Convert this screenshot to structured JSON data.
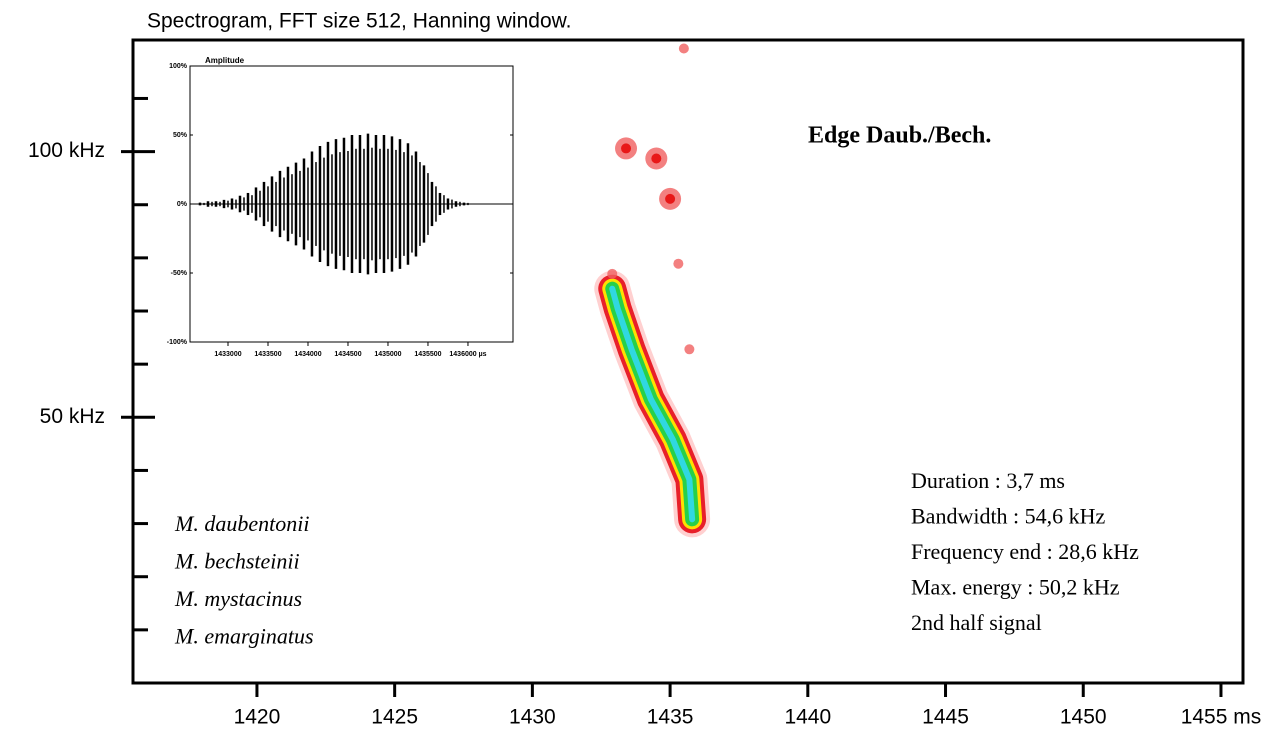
{
  "chart_data": {
    "type": "spectrogram",
    "title": "Spectrogram, FFT size 512, Hanning window.",
    "xlim": [
      1415.5,
      1455.8
    ],
    "xticks": [
      1420,
      1425,
      1430,
      1435,
      1440,
      1445,
      1450,
      {
        "value": 1455,
        "label": "1455 ms"
      }
    ],
    "ylim": [
      0,
      121
    ],
    "yticks": [
      {
        "value": 50,
        "label": "50 kHz"
      },
      {
        "value": 100,
        "label": "100 kHz"
      }
    ],
    "minor_yticks": [
      10,
      20,
      30,
      40,
      60,
      70,
      80,
      90,
      110
    ],
    "call": {
      "x": [
        1432.9,
        1433.1,
        1433.6,
        1434.3,
        1435.1,
        1435.7,
        1435.8
      ],
      "y": [
        74.2,
        70.4,
        62.8,
        53.4,
        45.8,
        38.3,
        30.8
      ]
    },
    "fragments": {
      "x": [
        1434.5,
        1435.0,
        1433.4,
        1435.5,
        1435.3,
        1435.7,
        1432.9
      ],
      "y": [
        98.7,
        91.1,
        100.6,
        119.4,
        78.9,
        62.8,
        77.0
      ]
    },
    "label": "Edge Daub./Bech.",
    "species": [
      "M. daubentonii",
      "M. bechsteinii",
      "M. mystacinus",
      "M. emarginatus"
    ],
    "measurements": [
      "Duration : 3,7 ms",
      "Bandwidth : 54,6 kHz",
      "Frequency end : 28,6 kHz",
      "Max. energy : 50,2 kHz",
      "2nd half signal"
    ],
    "inset": {
      "type": "waveform",
      "ylabel": "Amplitude",
      "xlim": [
        1432525,
        1436563
      ],
      "xticks": [
        1433000,
        1433500,
        1434000,
        1434500,
        1435000,
        1435500,
        {
          "value": 1436000,
          "label": "1436000 µs"
        }
      ],
      "ylim": [
        -100,
        100
      ],
      "yticks": [
        {
          "value": 100,
          "label": "100%"
        },
        {
          "value": 50,
          "label": "50%"
        },
        {
          "value": 0,
          "label": "0%"
        },
        {
          "value": -50,
          "label": "-50%"
        },
        {
          "value": -100,
          "label": "-100%"
        }
      ],
      "envelope": {
        "x": [
          1432650,
          1432750,
          1432850,
          1432950,
          1433050,
          1433150,
          1433250,
          1433350,
          1433450,
          1433550,
          1433650,
          1433750,
          1433850,
          1433950,
          1434050,
          1434150,
          1434250,
          1434350,
          1434450,
          1434550,
          1434650,
          1434750,
          1434850,
          1434950,
          1435050,
          1435150,
          1435250,
          1435350,
          1435450,
          1435550,
          1435650,
          1435750,
          1435850,
          1435950
        ],
        "values": [
          1,
          2,
          2,
          3,
          4,
          6,
          8,
          12,
          16,
          20,
          24,
          27,
          30,
          33,
          38,
          42,
          45,
          47,
          48,
          50,
          50,
          51,
          50,
          50,
          49,
          47,
          44,
          38,
          28,
          16,
          8,
          4,
          2,
          1
        ]
      }
    }
  }
}
